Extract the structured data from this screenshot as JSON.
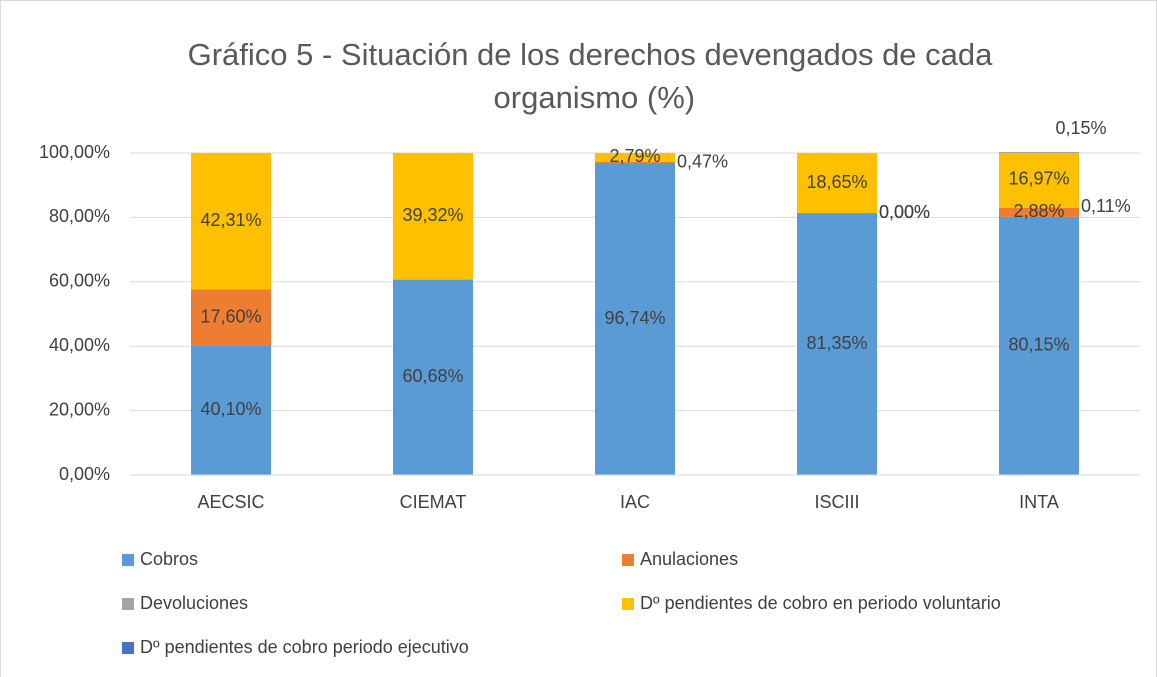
{
  "chart_data": {
    "type": "stacked_bar",
    "title": "Gráfico 5 - Situación de los derechos devengados de cada organismo (%)",
    "categories": [
      "AECSIC",
      "CIEMAT",
      "IAC",
      "ISCIII",
      "INTA"
    ],
    "series": [
      {
        "name": "Cobros",
        "color": "#5b9bd5",
        "values": [
          40.1,
          60.68,
          96.74,
          81.35,
          80.15
        ],
        "value_labels": [
          "40,10%",
          "60,68%",
          "96,74%",
          "81,35%",
          "80,15%"
        ]
      },
      {
        "name": "Anulaciones",
        "color": "#ed7d31",
        "values": [
          17.6,
          null,
          0.47,
          0,
          2.88
        ],
        "value_labels": [
          "17,60%",
          null,
          "0,47%",
          "0,00%",
          "2,88%"
        ]
      },
      {
        "name": "Devoluciones",
        "color": "#a5a5a5",
        "values": [
          null,
          null,
          null,
          0,
          0.11
        ],
        "value_labels": [
          null,
          null,
          null,
          "0,00%",
          "0,11%"
        ]
      },
      {
        "name": "Dº pendientes de cobro en periodo voluntario",
        "color": "#ffc000",
        "values": [
          42.31,
          39.32,
          2.79,
          18.65,
          16.97
        ],
        "value_labels": [
          "42,31%",
          "39,32%",
          "2,79%",
          "18,65%",
          "16,97%"
        ]
      },
      {
        "name": "Dº pendientes de cobro periodo ejecutivo",
        "color": "#4472c4",
        "values": [
          null,
          null,
          null,
          null,
          0.15
        ],
        "value_labels": [
          null,
          null,
          null,
          null,
          "0,15%"
        ]
      }
    ],
    "ylim": [
      0,
      100
    ],
    "yticks": [
      {
        "value": 0,
        "label": "0,00%"
      },
      {
        "value": 20,
        "label": "20,00%"
      },
      {
        "value": 40,
        "label": "40,00%"
      },
      {
        "value": 60,
        "label": "60,00%"
      },
      {
        "value": 80,
        "label": "80,00%"
      },
      {
        "value": 100,
        "label": "100,00%"
      }
    ],
    "grid": true,
    "legend": "bottom"
  }
}
